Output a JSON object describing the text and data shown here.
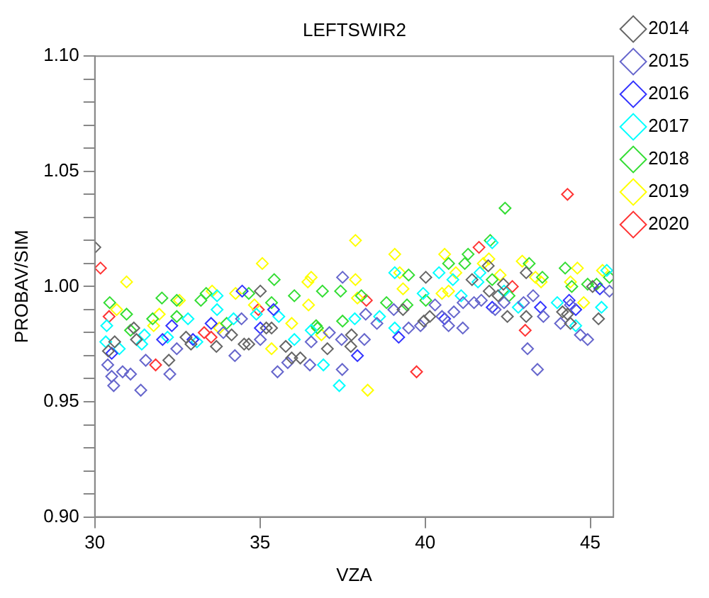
{
  "chart_data": {
    "type": "scatter",
    "title": "LEFTSWIR2",
    "xlabel": "VZA",
    "ylabel": "PROBAV/SIM",
    "marker": "diamond",
    "grid": false,
    "legend": "top right",
    "xlim": [
      30,
      45.7
    ],
    "xticks": [
      30,
      35,
      40,
      45
    ],
    "ylim": [
      0.9,
      1.1
    ],
    "yticks": [
      {
        "value": 0.9,
        "label": "0.90"
      },
      {
        "value": 0.91,
        "label": null
      },
      {
        "value": 0.92,
        "label": null
      },
      {
        "value": 0.93,
        "label": null
      },
      {
        "value": 0.94,
        "label": null
      },
      0.95,
      {
        "value": 0.96,
        "label": null
      },
      {
        "value": 0.97,
        "label": null
      },
      {
        "value": 0.98,
        "label": null
      },
      {
        "value": 0.99,
        "label": null
      },
      {
        "value": 1.0,
        "label": "1.00"
      },
      {
        "value": 1.01,
        "label": null
      },
      {
        "value": 1.02,
        "label": null
      },
      {
        "value": 1.03,
        "label": null
      },
      {
        "value": 1.04,
        "label": null
      },
      1.05,
      {
        "value": 1.06,
        "label": null
      },
      {
        "value": 1.07,
        "label": null
      },
      {
        "value": 1.08,
        "label": null
      },
      {
        "value": 1.09,
        "label": null
      },
      {
        "value": 1.1,
        "label": "1.10"
      }
    ],
    "series": [
      {
        "name": "2014",
        "color": "#666666",
        "x": [
          30,
          30.41,
          30.6,
          31.18,
          31.26,
          32.24,
          32.76,
          32.91,
          33.68,
          34.14,
          34.52,
          34.66,
          35.01,
          35.19,
          35.35,
          35.78,
          35.96,
          36.22,
          37.04,
          37.77,
          37.75,
          39.33,
          40.02,
          39.96,
          40.14,
          41.42,
          41.91,
          41.94,
          42.21,
          42.37,
          42.49,
          43.06,
          43.06,
          44.16,
          44.31,
          44.4,
          45.25,
          45.07
        ],
        "values": [
          1.017,
          0.972,
          0.976,
          0.982,
          0.977,
          0.968,
          0.978,
          0.975,
          0.974,
          0.979,
          0.975,
          0.975,
          0.998,
          0.982,
          0.982,
          0.974,
          0.969,
          0.969,
          0.973,
          0.979,
          0.974,
          0.99,
          1.004,
          0.985,
          0.987,
          1.003,
          1.009,
          0.998,
          0.996,
          1.001,
          0.987,
          1.006,
          0.987,
          0.989,
          0.988,
          0.984,
          0.986,
          1.0
        ]
      },
      {
        "name": "2015",
        "color": "#6666cc",
        "x": [
          30.39,
          30.51,
          30.57,
          30.84,
          31.08,
          31.39,
          31.54,
          32.27,
          32.48,
          33.89,
          34.24,
          34.44,
          35.01,
          35.53,
          35.84,
          36.51,
          36.55,
          37.1,
          37.5,
          37.47,
          37.49,
          38.2,
          38.16,
          38.54,
          39.05,
          39.5,
          39.86,
          40.3,
          40.51,
          40.71,
          40.87,
          41.14,
          41.15,
          41.48,
          41.7,
          42.12,
          42.39,
          42.98,
          43.1,
          43.27,
          43.58,
          43.4,
          44.1,
          44.4,
          44.7,
          44.92,
          45.58
        ],
        "values": [
          0.966,
          0.961,
          0.957,
          0.963,
          0.962,
          0.955,
          0.968,
          0.962,
          0.973,
          0.98,
          0.97,
          0.986,
          0.977,
          0.963,
          0.967,
          0.966,
          0.976,
          0.98,
          1.004,
          0.977,
          0.964,
          0.988,
          0.977,
          0.984,
          0.99,
          0.982,
          0.983,
          0.992,
          0.987,
          0.983,
          0.989,
          0.982,
          0.993,
          0.993,
          0.994,
          0.99,
          0.993,
          0.993,
          0.973,
          0.996,
          0.987,
          0.964,
          0.984,
          0.992,
          0.979,
          0.977,
          0.998
        ]
      },
      {
        "name": "2016",
        "color": "#3333ff",
        "x": [
          30.51,
          32.05,
          32.33,
          32.97,
          33.52,
          34.46,
          35.01,
          35.41,
          37.95,
          39.2,
          40.59,
          42.03,
          43.49,
          44.36,
          44.56,
          45.29
        ],
        "values": [
          0.971,
          0.977,
          0.983,
          0.977,
          0.984,
          0.998,
          0.982,
          0.99,
          0.97,
          0.978,
          0.986,
          0.991,
          0.991,
          0.994,
          0.99,
          0.999
        ]
      },
      {
        "name": "2017",
        "color": "#00ffff",
        "x": [
          30.36,
          30.33,
          30.74,
          31.42,
          31.5,
          32.2,
          32.82,
          33.09,
          33.7,
          33.7,
          34.2,
          34.89,
          35.57,
          36.04,
          36.55,
          36.92,
          37.4,
          37.87,
          38.62,
          39.08,
          39.08,
          39.94,
          40.42,
          40.84,
          41.09,
          41.6,
          41.66,
          42.03,
          42.39,
          42.82,
          44.0,
          44.56,
          45.5,
          45.34
        ],
        "values": [
          0.983,
          0.976,
          0.973,
          0.975,
          0.979,
          0.978,
          0.986,
          0.976,
          0.996,
          0.99,
          0.986,
          0.988,
          0.987,
          0.977,
          0.981,
          0.966,
          0.957,
          0.986,
          0.987,
          0.982,
          1.006,
          0.997,
          1.006,
          1.003,
          0.996,
          1.002,
          1.006,
          1.019,
          0.998,
          0.991,
          0.993,
          0.983,
          1.007,
          0.991
        ]
      },
      {
        "name": "2018",
        "color": "#33dd33",
        "x": [
          30.45,
          30.96,
          31.08,
          31.75,
          32.03,
          32.48,
          32.48,
          33.21,
          33.37,
          33.99,
          34.66,
          35.43,
          35.35,
          36.04,
          36.7,
          36.89,
          36.74,
          37.44,
          37.5,
          38.07,
          38.83,
          39.45,
          39.5,
          40.02,
          40.71,
          41.2,
          41.3,
          41.97,
          42.03,
          42.42,
          42.54,
          43.15,
          43.55,
          44.24,
          44.44,
          44.92,
          45.19,
          45.58
        ],
        "values": [
          0.993,
          0.988,
          0.981,
          0.986,
          0.995,
          0.994,
          0.987,
          0.994,
          0.997,
          0.984,
          0.997,
          1.003,
          0.993,
          0.996,
          0.983,
          0.998,
          0.982,
          0.998,
          0.985,
          0.996,
          0.993,
          0.992,
          1.005,
          0.994,
          1.01,
          1.01,
          1.014,
          1.02,
          1.003,
          1.034,
          0.996,
          1.01,
          1.004,
          1.008,
          1.0,
          1.001,
          1.001,
          1.004
        ]
      },
      {
        "name": "2019",
        "color": "#ffff00",
        "x": [
          30.66,
          30.96,
          31.78,
          31.95,
          32.56,
          33.55,
          33.77,
          34.26,
          34.83,
          35.07,
          35.35,
          35.96,
          36.45,
          36.55,
          36.47,
          36.86,
          37.89,
          37.89,
          37.95,
          38.26,
          39.08,
          39.23,
          39.33,
          40.59,
          40.51,
          40.71,
          40.93,
          41.76,
          41.93,
          42.27,
          42.94,
          43.34,
          43.51,
          44.61,
          44.4,
          44.8,
          45.37
        ],
        "values": [
          0.99,
          1.002,
          0.983,
          0.988,
          0.994,
          0.998,
          0.982,
          0.997,
          0.992,
          1.01,
          0.973,
          0.984,
          1.002,
          1.004,
          0.992,
          0.979,
          1.02,
          1.003,
          0.995,
          0.955,
          1.014,
          1.006,
          0.999,
          1.014,
          0.997,
          0.998,
          1.006,
          1.01,
          1.012,
          1.005,
          1.011,
          1.004,
          1.002,
          1.008,
          1.002,
          0.993,
          1.007
        ]
      },
      {
        "name": "2020",
        "color": "#ff3333",
        "x": [
          30.17,
          30.43,
          31.84,
          33.31,
          33.52,
          34.95,
          38.22,
          39.74,
          41.63,
          42.64,
          43.03,
          44.31
        ],
        "values": [
          1.008,
          0.987,
          0.966,
          0.98,
          0.978,
          0.99,
          0.994,
          0.963,
          1.017,
          1.0,
          0.981,
          1.04
        ]
      }
    ]
  }
}
